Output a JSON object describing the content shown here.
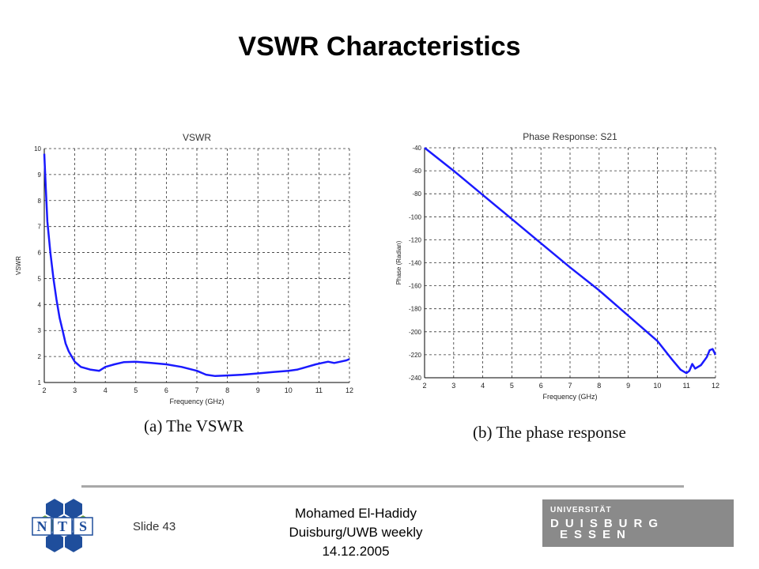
{
  "slide": {
    "title": "VSWR Characteristics",
    "slide_label": "Slide 43",
    "footer_lines": [
      "Mohamed El-Hadidy",
      "Duisburg/UWB weekly",
      "14.12.2005"
    ],
    "logo_left_letters": [
      "N",
      "T",
      "S"
    ],
    "logo_right": {
      "line1": "UNIVERSITÄT",
      "line2": "DUISBURG",
      "line3": "ESSEN"
    }
  },
  "chart_data": [
    {
      "type": "line",
      "title": "VSWR",
      "xlabel": "Frequency (GHz)",
      "ylabel": "VSWR",
      "xlim": [
        2,
        12
      ],
      "ylim": [
        1,
        10
      ],
      "xticks": [
        2,
        3,
        4,
        5,
        6,
        7,
        8,
        9,
        10,
        11,
        12
      ],
      "yticks": [
        1,
        2,
        3,
        4,
        5,
        6,
        7,
        8,
        9,
        10
      ],
      "grid": true,
      "line_color": "#1a1aff",
      "caption": "(a) The VSWR",
      "x": [
        2.0,
        2.05,
        2.1,
        2.2,
        2.3,
        2.4,
        2.5,
        2.6,
        2.7,
        2.8,
        2.9,
        3.0,
        3.2,
        3.5,
        3.8,
        4.0,
        4.3,
        4.6,
        5.0,
        5.5,
        6.0,
        6.5,
        7.0,
        7.3,
        7.6,
        8.0,
        8.5,
        9.0,
        9.5,
        10.0,
        10.3,
        10.6,
        10.9,
        11.1,
        11.3,
        11.5,
        11.7,
        11.9,
        12.0
      ],
      "y": [
        9.8,
        8.5,
        7.2,
        6.0,
        5.0,
        4.2,
        3.5,
        3.0,
        2.5,
        2.2,
        2.0,
        1.8,
        1.6,
        1.5,
        1.45,
        1.6,
        1.7,
        1.78,
        1.8,
        1.75,
        1.7,
        1.6,
        1.45,
        1.3,
        1.25,
        1.27,
        1.3,
        1.35,
        1.4,
        1.45,
        1.5,
        1.6,
        1.7,
        1.75,
        1.8,
        1.75,
        1.8,
        1.85,
        1.9
      ]
    },
    {
      "type": "line",
      "title": "Phase Response: S21",
      "xlabel": "Frequency (GHz)",
      "ylabel": "Phase (Radian)",
      "xlim": [
        2,
        12
      ],
      "ylim": [
        -240,
        -40
      ],
      "xticks": [
        2,
        3,
        4,
        5,
        6,
        7,
        8,
        9,
        10,
        11,
        12
      ],
      "yticks": [
        -40,
        -60,
        -80,
        -100,
        -120,
        -140,
        -160,
        -180,
        -200,
        -220,
        -240
      ],
      "grid": true,
      "line_color": "#1a1aff",
      "caption": "(b) The phase response",
      "x": [
        2.0,
        3.0,
        4.0,
        5.0,
        6.0,
        7.0,
        8.0,
        9.0,
        10.0,
        10.5,
        10.8,
        11.0,
        11.1,
        11.2,
        11.3,
        11.5,
        11.7,
        11.8,
        11.9,
        12.0
      ],
      "y": [
        -40,
        -60,
        -81,
        -102,
        -123,
        -144,
        -164,
        -186,
        -208,
        -224,
        -233,
        -236,
        -234,
        -228,
        -232,
        -229,
        -222,
        -216,
        -215,
        -220
      ]
    }
  ]
}
